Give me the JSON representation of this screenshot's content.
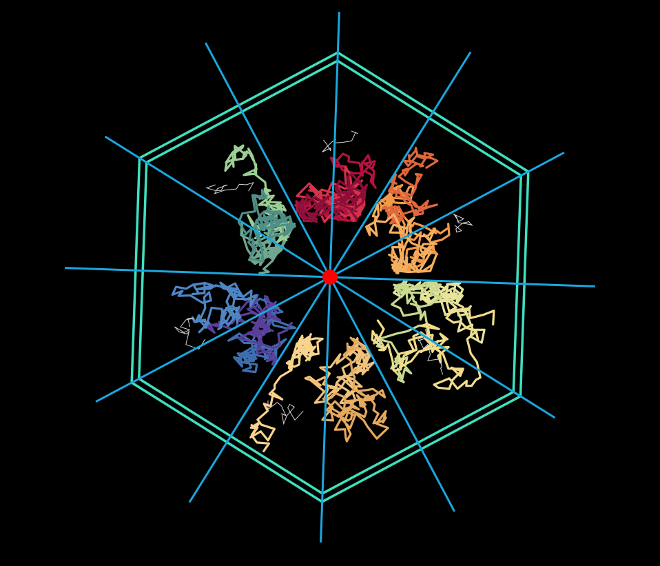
{
  "scene": {
    "background": "#000000",
    "symmetry_axis_color": "#1aa7e0",
    "hexagon_frame_color": "#3fe0c0",
    "center_marker_color": "#ff0000",
    "axis_count": 12,
    "chain_count": 6,
    "chains": [
      {
        "name": "chain-red",
        "colors": [
          "#b3123f",
          "#d9304a",
          "#8c0f3a"
        ]
      },
      {
        "name": "chain-orange",
        "colors": [
          "#f29a4a",
          "#e0673c",
          "#f4b060"
        ]
      },
      {
        "name": "chain-yellow",
        "colors": [
          "#e6e39a",
          "#c9d98f",
          "#f1dd8a"
        ]
      },
      {
        "name": "chain-sand",
        "colors": [
          "#f0c27a",
          "#e5a95f",
          "#f7d38c"
        ]
      },
      {
        "name": "chain-blue",
        "colors": [
          "#3d6fb0",
          "#5a3f9a",
          "#4e86c4"
        ]
      },
      {
        "name": "chain-teal",
        "colors": [
          "#6ea88f",
          "#9bcf95",
          "#4f8f88"
        ]
      }
    ],
    "loop_color": "#d8d8d8"
  }
}
